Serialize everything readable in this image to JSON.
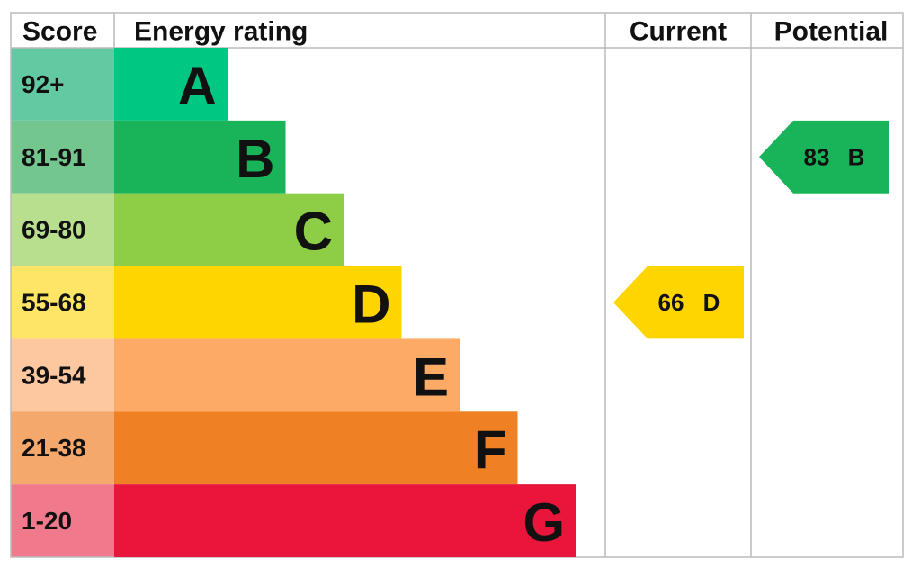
{
  "header": {
    "score": "Score",
    "energy_rating": "Energy rating",
    "current": "Current",
    "potential": "Potential"
  },
  "bands": [
    {
      "score": "92+",
      "letter": "A",
      "color": "#00c781",
      "score_color": "#63c9a2"
    },
    {
      "score": "81-91",
      "letter": "B",
      "color": "#19b459",
      "score_color": "#74c68f"
    },
    {
      "score": "69-80",
      "letter": "C",
      "color": "#8dce46",
      "score_color": "#b7df8e"
    },
    {
      "score": "55-68",
      "letter": "D",
      "color": "#ffd500",
      "score_color": "#ffe566"
    },
    {
      "score": "39-54",
      "letter": "E",
      "color": "#fcaa65",
      "score_color": "#fdc8a0"
    },
    {
      "score": "21-38",
      "letter": "F",
      "color": "#ef8023",
      "score_color": "#f4a86b"
    },
    {
      "score": "1-20",
      "letter": "G",
      "color": "#e9153b",
      "score_color": "#f07a8b"
    }
  ],
  "current": {
    "score": 66,
    "letter": "D"
  },
  "potential": {
    "score": 83,
    "letter": "B"
  }
}
